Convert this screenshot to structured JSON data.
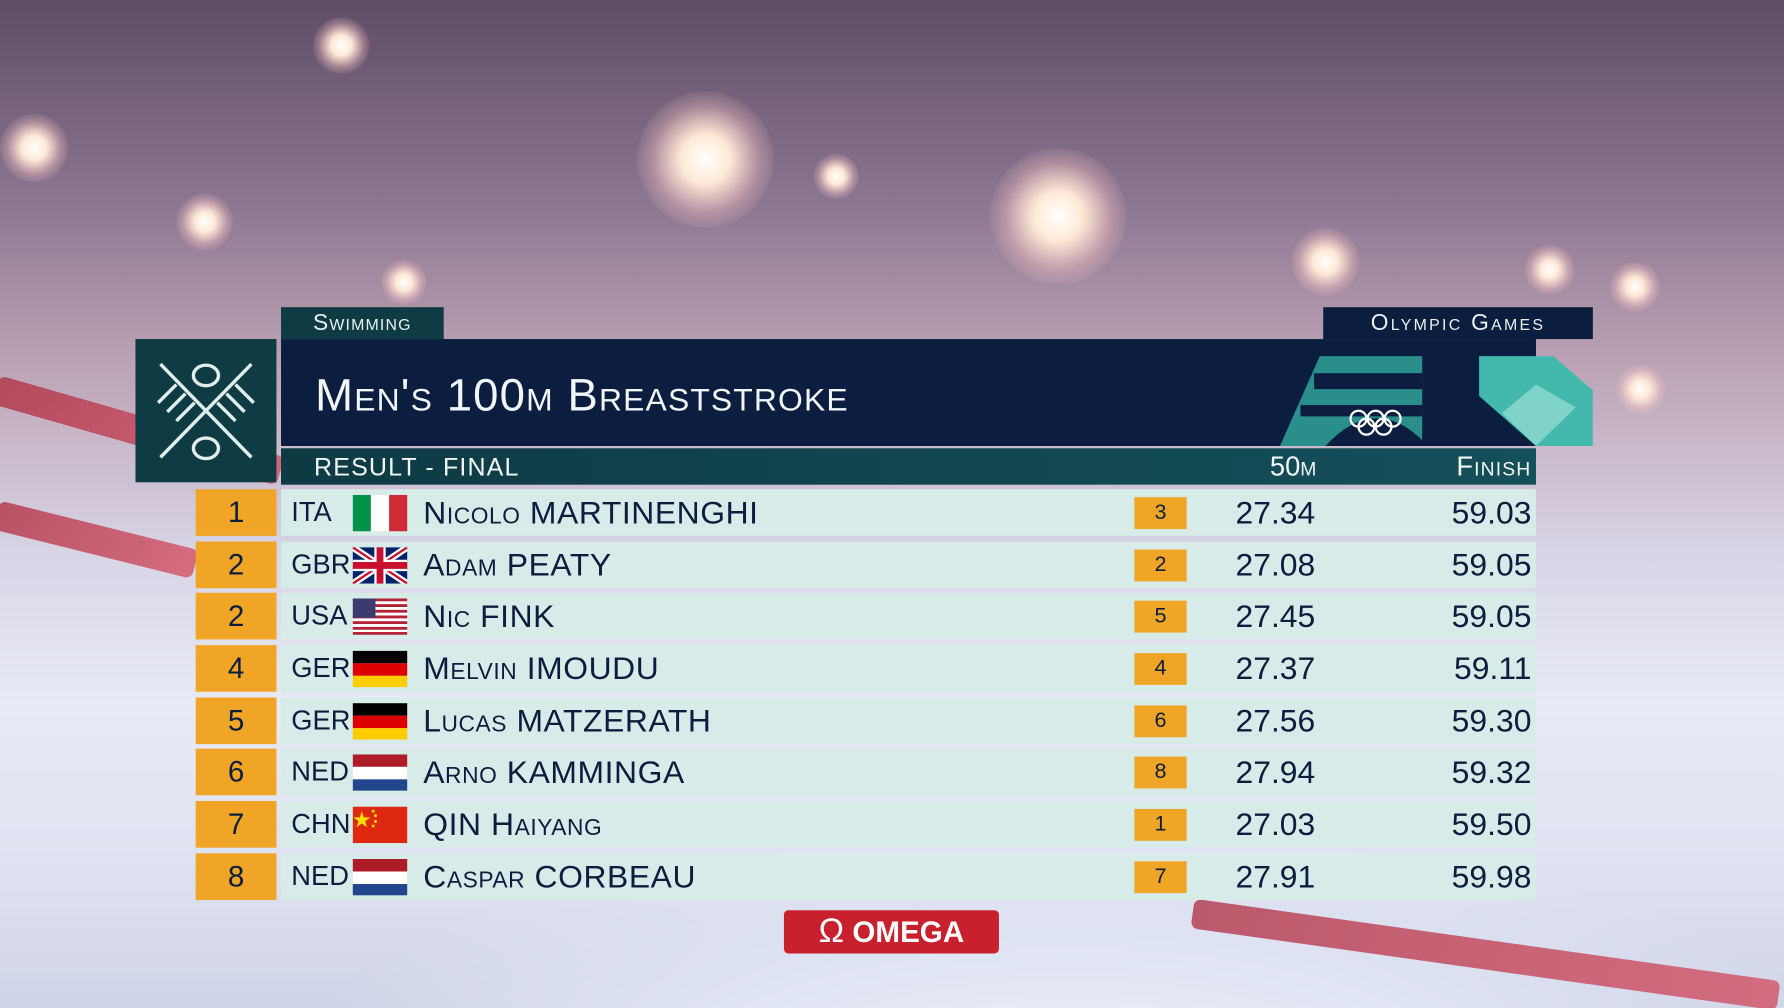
{
  "header": {
    "sport": "Swimming",
    "event": "Men's 100m Breaststroke",
    "phase": "RESULT - FINAL",
    "games": "Olympic Games",
    "columns": [
      "50m",
      "Finish"
    ]
  },
  "table": {
    "rows": [
      [
        "1",
        "ITA",
        "Nicolo MARTINENGHI",
        "3",
        "27.34",
        "59.03"
      ],
      [
        "2",
        "GBR",
        "Adam PEATY",
        "2",
        "27.08",
        "59.05"
      ],
      [
        "2",
        "USA",
        "Nic FINK",
        "5",
        "27.45",
        "59.05"
      ],
      [
        "4",
        "GER",
        "Melvin IMOUDU",
        "4",
        "27.37",
        "59.11"
      ],
      [
        "5",
        "GER",
        "Lucas MATZERATH",
        "6",
        "27.56",
        "59.30"
      ],
      [
        "6",
        "NED",
        "Arno KAMMINGA",
        "8",
        "27.94",
        "59.32"
      ],
      [
        "7",
        "CHN",
        "QIN Haiyang",
        "1",
        "27.03",
        "59.50"
      ],
      [
        "8",
        "NED",
        "Caspar CORBEAU",
        "7",
        "27.91",
        "59.98"
      ]
    ]
  },
  "sponsor": {
    "symbol": "Ω",
    "name": "OMEGA"
  }
}
